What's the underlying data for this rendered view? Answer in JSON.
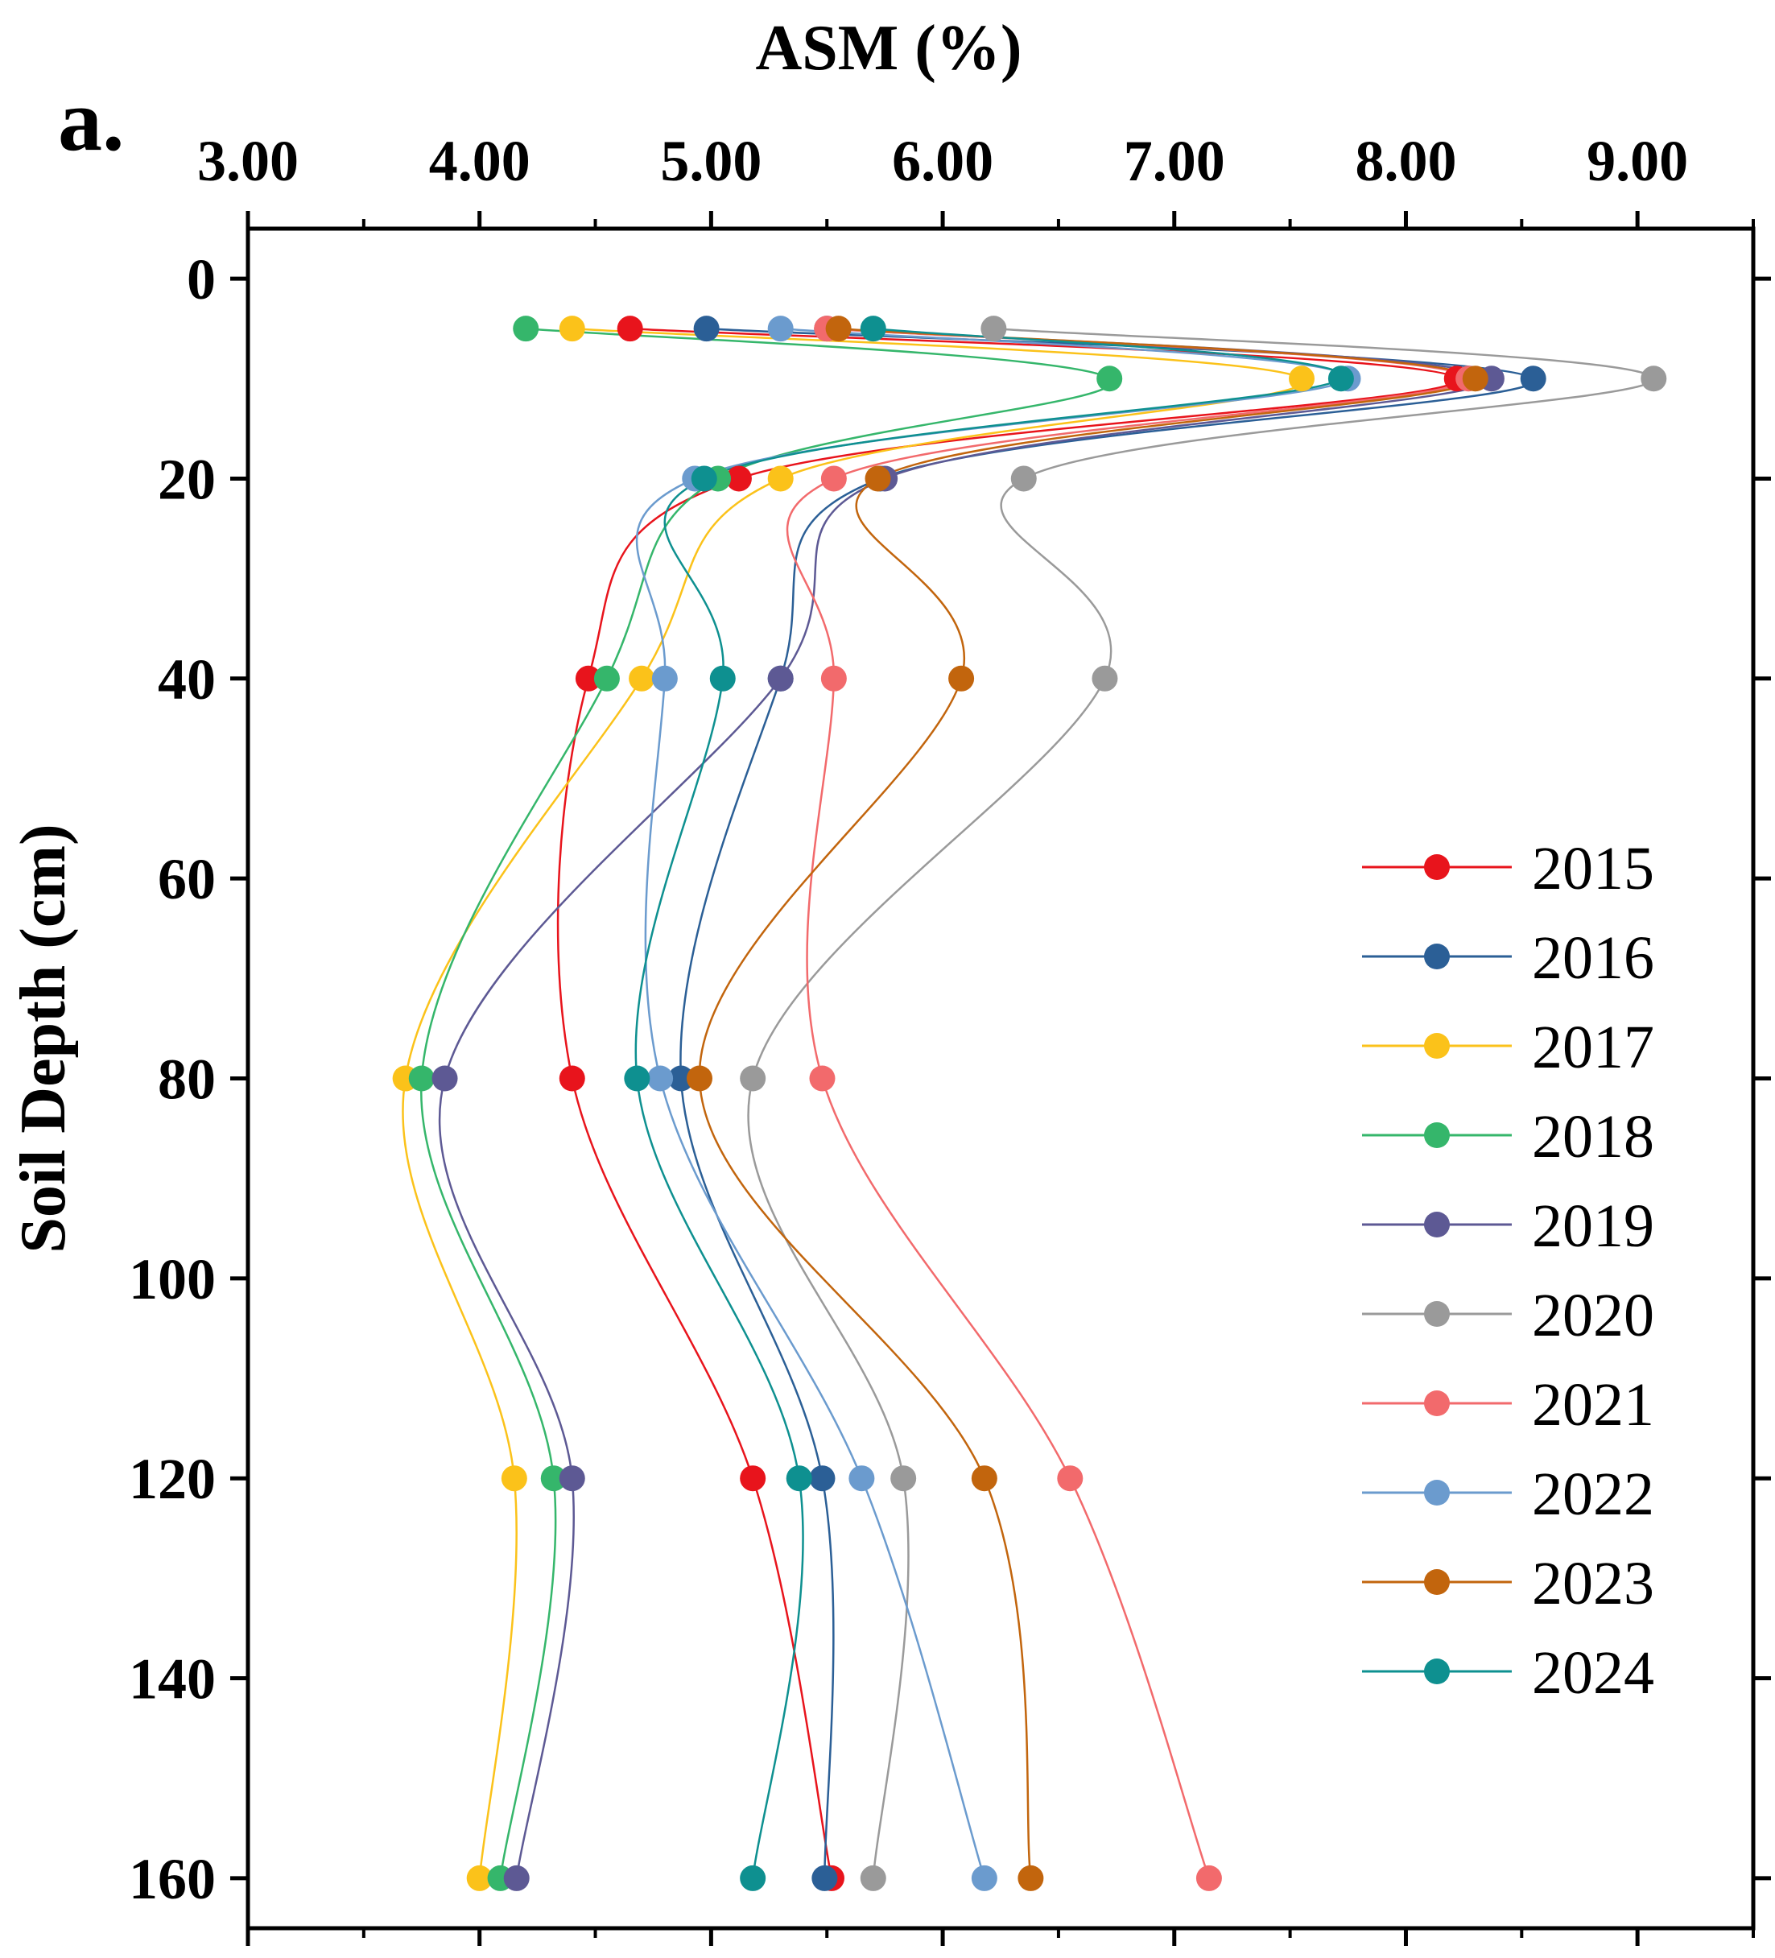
{
  "panel_label": "a.",
  "chart_data": {
    "type": "line",
    "title": "",
    "xlabel": "ASM (%)",
    "ylabel": "Soil Depth (cm)",
    "xlim": [
      3.0,
      9.5
    ],
    "ylim": [
      -5,
      165
    ],
    "x_axis_position": "top",
    "y_axis_inverted": true,
    "x_ticks": [
      3.0,
      4.0,
      5.0,
      6.0,
      7.0,
      8.0,
      9.0
    ],
    "x_tick_labels": [
      "3.00",
      "4.00",
      "5.00",
      "6.00",
      "7.00",
      "8.00",
      "9.00"
    ],
    "y_ticks": [
      0,
      20,
      40,
      60,
      80,
      100,
      120,
      140,
      160
    ],
    "y_tick_labels": [
      "0",
      "20",
      "40",
      "60",
      "80",
      "100",
      "120",
      "140",
      "160"
    ],
    "depths": [
      5,
      10,
      20,
      40,
      80,
      120,
      160
    ],
    "grid": false,
    "legend_position": "right",
    "series": [
      {
        "name": "2015",
        "color": "#e8141c",
        "dash": "",
        "values": [
          4.65,
          8.22,
          5.12,
          4.47,
          4.4,
          5.18,
          5.52
        ]
      },
      {
        "name": "2016",
        "color": "#2b5f96",
        "dash": "",
        "values": [
          4.98,
          8.55,
          5.73,
          5.3,
          4.87,
          5.48,
          5.49
        ]
      },
      {
        "name": "2017",
        "color": "#fbc21a",
        "dash": "",
        "values": [
          4.4,
          7.55,
          5.3,
          4.7,
          3.68,
          4.15,
          4.0
        ]
      },
      {
        "name": "2018",
        "color": "#35b66b",
        "dash": "",
        "values": [
          4.2,
          6.72,
          5.03,
          4.55,
          3.75,
          4.32,
          4.09
        ]
      },
      {
        "name": "2019",
        "color": "#5d5994",
        "dash": "",
        "values": [
          5.5,
          8.37,
          5.75,
          5.3,
          3.85,
          4.4,
          4.16
        ]
      },
      {
        "name": "2020",
        "color": "#9a9a9a",
        "dash": "",
        "values": [
          6.22,
          9.07,
          6.35,
          6.7,
          5.18,
          5.83,
          5.7
        ]
      },
      {
        "name": "2021",
        "color": "#f26a6c",
        "dash": "",
        "values": [
          5.5,
          8.27,
          5.53,
          5.53,
          5.48,
          6.55,
          7.15
        ]
      },
      {
        "name": "2022",
        "color": "#6b9bce",
        "dash": "",
        "values": [
          5.3,
          7.75,
          4.93,
          4.8,
          4.78,
          5.65,
          6.18
        ]
      },
      {
        "name": "2023",
        "color": "#c2650d",
        "dash": "",
        "values": [
          5.55,
          8.3,
          5.72,
          6.08,
          4.95,
          6.18,
          6.38
        ]
      },
      {
        "name": "2024",
        "color": "#0e9090",
        "dash": "",
        "values": [
          5.7,
          7.72,
          4.97,
          5.05,
          4.68,
          5.38,
          5.18
        ]
      }
    ]
  }
}
